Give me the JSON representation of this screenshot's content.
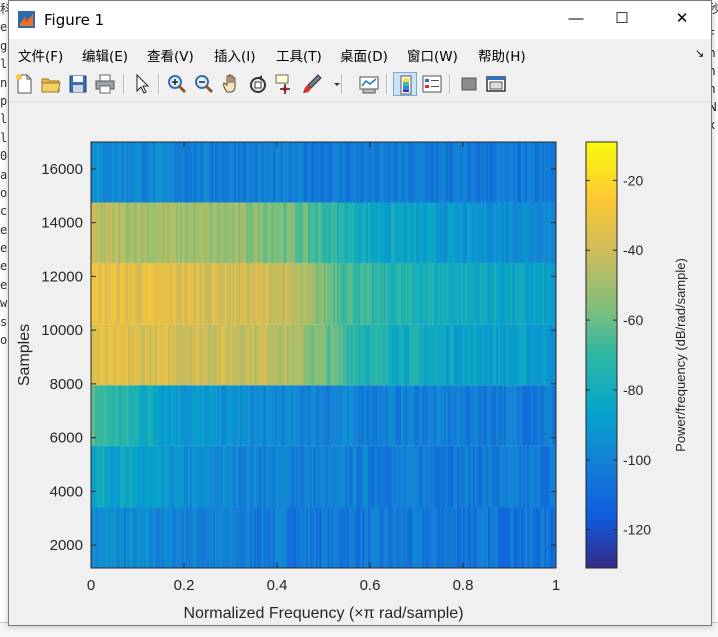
{
  "window": {
    "title": "Figure 1",
    "controls": {
      "minimize": "—",
      "maximize": "☐",
      "close": "✕"
    }
  },
  "menu": [
    {
      "label": "文件(F)"
    },
    {
      "label": "编辑(E)"
    },
    {
      "label": "查看(V)"
    },
    {
      "label": "插入(I)"
    },
    {
      "label": "工具(T)"
    },
    {
      "label": "桌面(D)"
    },
    {
      "label": "窗口(W)"
    },
    {
      "label": "帮助(H)"
    }
  ],
  "toolbar": [
    {
      "icon": "new-figure-icon"
    },
    {
      "icon": "open-file-icon"
    },
    {
      "icon": "save-icon"
    },
    {
      "icon": "print-icon"
    },
    {
      "icon": "select-arrow-icon"
    },
    {
      "icon": "zoom-in-icon"
    },
    {
      "icon": "zoom-out-icon"
    },
    {
      "icon": "pan-hand-icon"
    },
    {
      "icon": "rotate-3d-icon"
    },
    {
      "icon": "data-cursor-icon"
    },
    {
      "icon": "brush-icon"
    },
    {
      "icon": "link-plot-icon"
    },
    {
      "icon": "colorbar-icon"
    },
    {
      "icon": "legend-icon"
    },
    {
      "icon": "hide-plot-tools-icon"
    },
    {
      "icon": "show-plot-tools-icon"
    }
  ],
  "background": {
    "left_fragments": [
      "科",
      "ei",
      "gi",
      "l",
      "ne",
      "p",
      "la",
      "la",
      "04",
      "at",
      "ou",
      "co",
      "ex",
      "ex",
      "ex",
      "ex",
      "w,",
      "st",
      "or"
    ],
    "right_fragments": [
      "秒",
      "F",
      "n",
      "n",
      "n",
      "N",
      "x"
    ]
  },
  "chart_data": {
    "type": "heatmap",
    "xlabel": "Normalized Frequency  (×π rad/sample)",
    "ylabel": "Samples",
    "xlim": [
      0,
      1
    ],
    "ylim": [
      1150,
      17000
    ],
    "x_ticks": [
      "0",
      "0.2",
      "0.4",
      "0.6",
      "0.8",
      "1"
    ],
    "y_ticks": [
      "2000",
      "4000",
      "6000",
      "8000",
      "10000",
      "12000",
      "14000",
      "16000"
    ],
    "colorbar": {
      "label": "Power/frequency (dB/rad/sample)",
      "range": [
        -131,
        -9
      ],
      "ticks": [
        "-20",
        "-40",
        "-60",
        "-80",
        "-100",
        "-120"
      ],
      "colormap": "parula"
    },
    "segments": [
      {
        "from": 1150,
        "to": 3400,
        "level": [
          -95,
          -100,
          -103,
          -104,
          -105,
          -106
        ]
      },
      {
        "from": 3400,
        "to": 5700,
        "level": [
          -80,
          -95,
          -100,
          -102,
          -103,
          -104
        ]
      },
      {
        "from": 5700,
        "to": 7950,
        "level": [
          -65,
          -90,
          -98,
          -100,
          -102,
          -103
        ]
      },
      {
        "from": 7950,
        "to": 10200,
        "level": [
          -35,
          -38,
          -42,
          -75,
          -85,
          -90
        ]
      },
      {
        "from": 10200,
        "to": 12500,
        "level": [
          -32,
          -35,
          -40,
          -72,
          -80,
          -88
        ]
      },
      {
        "from": 12500,
        "to": 14750,
        "level": [
          -45,
          -50,
          -55,
          -82,
          -92,
          -96
        ]
      },
      {
        "from": 14750,
        "to": 17000,
        "level": [
          -95,
          -100,
          -102,
          -103,
          -104,
          -105
        ]
      }
    ]
  }
}
